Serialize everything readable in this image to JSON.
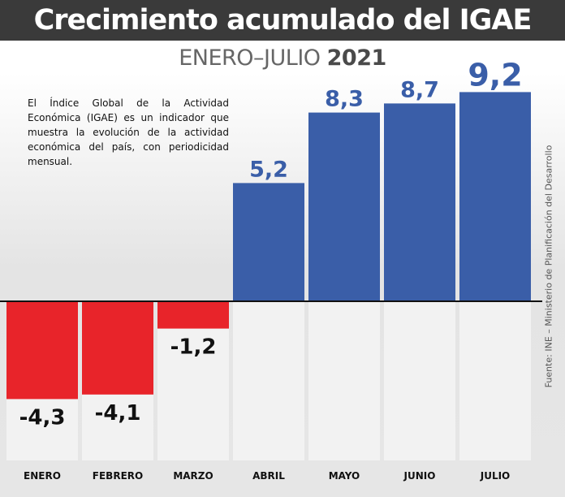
{
  "header": {
    "title": "Crecimiento acumulado del IGAE",
    "subtitle_period": "ENERO–JULIO",
    "subtitle_year": "2021"
  },
  "description": "El Índice Global de la Actividad Económica (IGAE) es un indicador que muestra la evolución de la actividad económica del país, con periodicidad mensual.",
  "source": "Fuente: INE – Ministerio de Planificación del Desarrollo",
  "colors": {
    "positive": "#3a5ea8",
    "negative": "#e8242a",
    "title_bar": "#3a3a3a",
    "column_background": "#f2f2f2"
  },
  "chart_data": {
    "type": "bar",
    "categories": [
      "ENERO",
      "FEBRERO",
      "MARZO",
      "ABRIL",
      "MAYO",
      "JUNIO",
      "JULIO"
    ],
    "values": [
      -4.3,
      -4.1,
      -1.2,
      5.2,
      8.3,
      8.7,
      9.2
    ],
    "value_labels": [
      "-4,3",
      "-4,1",
      "-1,2",
      "5,2",
      "8,3",
      "8,7",
      "9,2"
    ],
    "title": "Crecimiento acumulado del IGAE",
    "subtitle": "ENERO–JULIO 2021",
    "xlabel": "",
    "ylabel": "",
    "grid": false,
    "legend": "none"
  }
}
